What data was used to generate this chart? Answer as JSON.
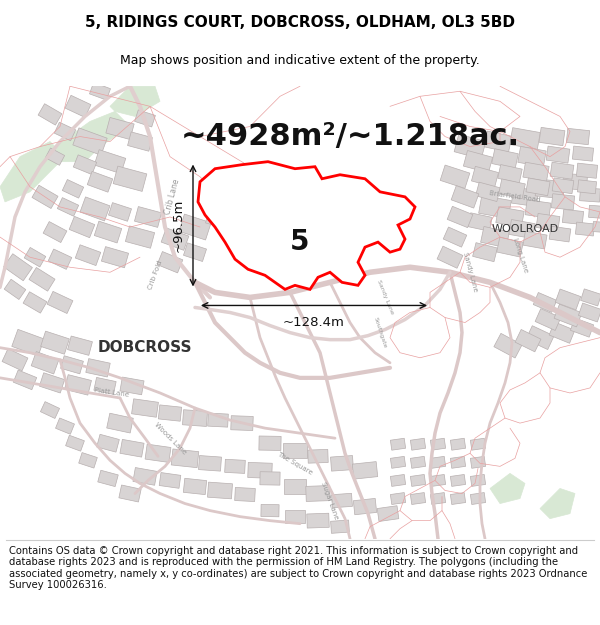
{
  "title_line1": "5, RIDINGS COURT, DOBCROSS, OLDHAM, OL3 5BD",
  "title_line2": "Map shows position and indicative extent of the property.",
  "area_text": "~4928m²/~1.218ac.",
  "label_5": "5",
  "dim_horizontal": "~128.4m",
  "dim_vertical": "~96.5m",
  "woolroad_label": "WOOLROAD",
  "dobcross_label": "DOBCROSS",
  "footer_text": "Contains OS data © Crown copyright and database right 2021. This information is subject to Crown copyright and database rights 2023 and is reproduced with the permission of HM Land Registry. The polygons (including the associated geometry, namely x, y co-ordinates) are subject to Crown copyright and database rights 2023 Ordnance Survey 100026316.",
  "map_bg": "#ffffff",
  "plot_bg": "#ffffff",
  "parcel_fill": "#f5f0f0",
  "parcel_stroke": "#e8a0a0",
  "building_fill": "#d8d4d4",
  "building_stroke": "#b8b0b0",
  "highlight_color": "#ff0000",
  "highlight_fill": "#ffffff",
  "green_fill": "#d8e8d4",
  "road_color": "#e8d8d8",
  "dim_color": "#111111",
  "label_color": "#333333",
  "street_label_color": "#999999",
  "footer_bg": "#ffffff",
  "title_fontsize": 11,
  "subtitle_fontsize": 9,
  "area_fontsize": 22,
  "label_fontsize": 20,
  "dim_fontsize": 9.5,
  "footer_fontsize": 7.2,
  "woolroad_fontsize": 8,
  "dobcross_fontsize": 11,
  "street_label_fontsize": 5.5
}
